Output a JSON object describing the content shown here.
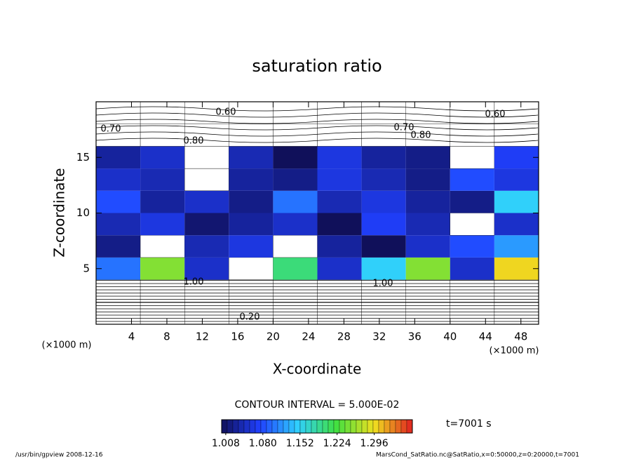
{
  "chart_data": {
    "type": "contour",
    "title": "saturation ratio",
    "xlabel": "X-coordinate",
    "ylabel": "Z-coordinate",
    "xunit": "(×1000 m)",
    "yunit": "(×1000 m)",
    "xlim": [
      0,
      50
    ],
    "ylim": [
      0,
      20
    ],
    "xticks": [
      4,
      8,
      12,
      16,
      20,
      24,
      28,
      32,
      36,
      40,
      44,
      48
    ],
    "yticks": [
      5,
      10,
      15
    ],
    "x": [
      2.5,
      7.5,
      12.5,
      17.5,
      22.5,
      27.5,
      32.5,
      37.5,
      42.5,
      47.5
    ],
    "z": [
      1,
      3,
      5,
      7,
      9,
      11,
      13,
      15,
      17,
      19
    ],
    "values": [
      [
        0.3,
        0.3,
        0.3,
        0.3,
        0.3,
        0.3,
        0.3,
        0.3,
        0.3,
        0.3
      ],
      [
        0.7,
        0.75,
        0.7,
        0.72,
        0.7,
        0.7,
        0.75,
        0.7,
        0.72,
        0.7
      ],
      [
        1.1,
        1.25,
        1.05,
        0.98,
        1.2,
        1.05,
        1.15,
        1.25,
        1.05,
        1.3
      ],
      [
        1.02,
        0.98,
        1.04,
        1.06,
        0.97,
        1.03,
        1.0,
        1.05,
        1.08,
        1.12
      ],
      [
        1.04,
        1.06,
        1.01,
        1.03,
        1.05,
        1.0,
        1.07,
        1.04,
        0.99,
        1.05
      ],
      [
        1.08,
        1.03,
        1.05,
        1.02,
        1.1,
        1.04,
        1.06,
        1.03,
        1.02,
        1.15
      ],
      [
        1.05,
        1.04,
        0.99,
        1.03,
        1.02,
        1.06,
        1.04,
        1.02,
        1.08,
        1.06
      ],
      [
        1.03,
        1.05,
        0.98,
        1.04,
        1.0,
        1.06,
        1.03,
        1.02,
        0.99,
        1.07
      ],
      [
        0.85,
        0.88,
        0.86,
        0.9,
        0.87,
        0.89,
        0.86,
        0.85,
        0.86,
        0.88
      ],
      [
        0.65,
        0.62,
        0.6,
        0.64,
        0.66,
        0.63,
        0.61,
        0.65,
        0.62,
        0.6
      ]
    ],
    "colorbar": {
      "lim": [
        1.0,
        1.37
      ],
      "ticks": [
        1.008,
        {
          "value": 1.08,
          "label": "1.080"
        },
        1.152,
        1.224,
        1.296
      ]
    },
    "contour_interval": "CONTOUR INTERVAL = 5.000E-02",
    "time_label": "t=7001 s",
    "contour_labels": [
      "0.60",
      "0.70",
      "0.80",
      "0.60",
      "0.70",
      "0.80",
      "1.00",
      "1.00",
      "0.20"
    ],
    "footer_left": "/usr/bin/gpview   2008-12-16",
    "footer_right": "MarsCond_SatRatio.nc@SatRatio,x=0:50000,z=0:20000,t=7001"
  }
}
